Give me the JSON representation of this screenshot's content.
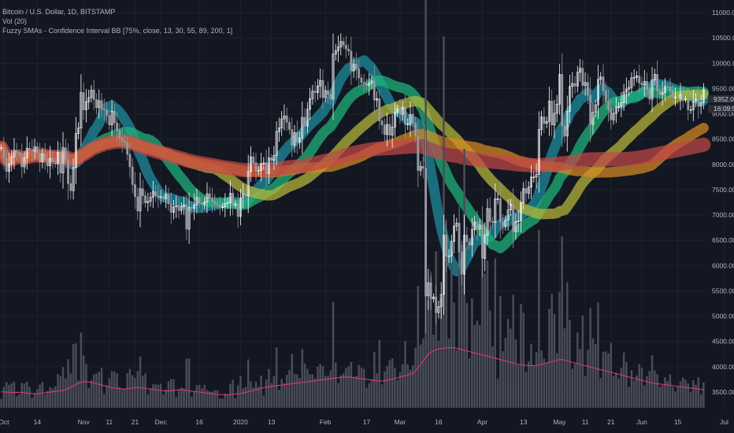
{
  "header": {
    "symbol_line": "Bitcoin / U.S. Dollar, 1D, BITSTAMP",
    "vol_line": "Vol (20)",
    "indicator_line": "Fuzzy SMAs - Confidence Interval BB [75%, close, 13, 30, 55, 89, 200, 1]"
  },
  "price_tags": {
    "last_price": "9352.07",
    "countdown": "16:09:50"
  },
  "colors": {
    "background": "#131722",
    "grid": "#1e222d",
    "axis_text": "#b2b5be",
    "up_candle": "#ffffff",
    "down_candle": "#9598a1",
    "volume": "#4a4d57",
    "volume_ma": "#d9396e",
    "band_13": "#1d8fa0",
    "band_30": "#1fb57a",
    "band_55": "#b8b83a",
    "band_89": "#d88a23",
    "band_200": "#c24848"
  },
  "chart_data": {
    "type": "candlestick",
    "title": "Bitcoin / U.S. Dollar, 1D, BITSTAMP",
    "y_axis": {
      "min": 3250,
      "max": 11250,
      "ticks": [
        "11000.00",
        "10500.00",
        "10000.00",
        "9500.00",
        "9000.00",
        "8500.00",
        "8000.00",
        "7500.00",
        "7000.00",
        "6500.00",
        "6000.00",
        "5500.00",
        "5000.00",
        "4500.00",
        "4000.00",
        "3500.00"
      ],
      "tick_values": [
        11000,
        10500,
        10000,
        9500,
        9000,
        8500,
        8000,
        7500,
        7000,
        6500,
        6000,
        5500,
        5000,
        4500,
        4000,
        3500
      ]
    },
    "x_axis": {
      "labels": [
        "Oct",
        "14",
        "Nov",
        "11",
        "21",
        "Dec",
        "16",
        "2020",
        "13",
        "Feb",
        "17",
        "Mar",
        "16",
        "Apr",
        "13",
        "May",
        "11",
        "21",
        "Jun",
        "15",
        "Jul"
      ],
      "label_day_index": [
        1,
        14,
        32,
        42,
        52,
        62,
        77,
        93,
        105,
        126,
        142,
        155,
        170,
        187,
        203,
        217,
        227,
        237,
        249,
        263,
        281
      ]
    },
    "series_close": [
      8330,
      8120,
      7860,
      8010,
      8150,
      8280,
      8230,
      8190,
      7950,
      8130,
      8320,
      8280,
      8260,
      8350,
      8220,
      8050,
      8210,
      8100,
      7970,
      8120,
      8060,
      8010,
      8240,
      7830,
      8330,
      8090,
      7620,
      7480,
      7940,
      8610,
      8720,
      9420,
      9080,
      9240,
      9320,
      9470,
      9280,
      9120,
      9260,
      9090,
      9080,
      8970,
      8780,
      9050,
      8820,
      8670,
      8520,
      8460,
      8440,
      8200,
      7950,
      7600,
      7360,
      7080,
      7520,
      7380,
      7240,
      7270,
      7350,
      7460,
      7380,
      7350,
      7360,
      7320,
      7410,
      7220,
      7050,
      7160,
      7180,
      7090,
      7170,
      7200,
      6720,
      7150,
      7130,
      7200,
      7350,
      7230,
      7210,
      7260,
      7420,
      7320,
      7270,
      7220,
      7200,
      7160,
      7160,
      7230,
      7240,
      7430,
      7190,
      7220,
      6970,
      7340,
      7420,
      7370,
      7860,
      8150,
      8030,
      7870,
      7880,
      8010,
      8030,
      7820,
      8130,
      8080,
      8180,
      8650,
      8720,
      8900,
      8960,
      8830,
      8690,
      8380,
      8630,
      8440,
      8520,
      8930,
      8760,
      9090,
      9300,
      9450,
      9420,
      9550,
      9660,
      9320,
      9460,
      9380,
      9290,
      10180,
      10250,
      10320,
      10430,
      10360,
      10280,
      10240,
      9850,
      9980,
      9890,
      9710,
      9620,
      9600,
      9560,
      9610,
      9650,
      9270,
      9300,
      8860,
      8780,
      8590,
      8790,
      8580,
      8740,
      9020,
      9100,
      8990,
      9130,
      8790,
      8800,
      8990,
      8820,
      8560,
      7880,
      7960,
      7920,
      5400,
      5660,
      5340,
      5380,
      5070,
      5190,
      5430,
      6600,
      6190,
      6190,
      6480,
      6780,
      6840,
      6270,
      5830,
      6600,
      6470,
      6410,
      6710,
      6860,
      6720,
      6800,
      6140,
      6600,
      7130,
      6870,
      6850,
      7320,
      7320,
      6860,
      6780,
      6900,
      7100,
      7210,
      6670,
      6870,
      6880,
      7240,
      7520,
      7430,
      7550,
      7750,
      7750,
      7800,
      8690,
      8940,
      8810,
      8850,
      9250,
      8780,
      9010,
      9190,
      9780,
      8760,
      8560,
      9050,
      9540,
      9600,
      9550,
      9820,
      9900,
      9560,
      9620,
      9370,
      8790,
      9030,
      9180,
      9680,
      9730,
      9460,
      9240,
      9090,
      8880,
      9010,
      9130,
      9140,
      9220,
      9430,
      9490,
      9520,
      9710,
      9720,
      9750,
      9610,
      9570,
      9640,
      9480,
      9290,
      9670,
      9780,
      9450,
      9380,
      9420,
      9540,
      9530,
      9460,
      9330,
      9330,
      9300,
      9380,
      9280,
      9290,
      9080,
      9080,
      9250,
      9290,
      9150,
      9220,
      9480
    ],
    "volume_ma": [
      2400,
      2380,
      2350,
      2320,
      2300,
      2280,
      2300,
      2320,
      2280,
      2250,
      2200,
      2150,
      2100,
      2080,
      2100,
      2150,
      2200,
      2250,
      2300,
      2350,
      2400,
      2450,
      2500,
      2550,
      2600,
      2700,
      2900,
      3100,
      3300,
      3500,
      3700,
      3800,
      3900,
      3900,
      3850,
      3800,
      3700,
      3600,
      3500,
      3400,
      3300,
      3200,
      3100,
      3000,
      2950,
      2900,
      2850,
      2800,
      2800,
      2850,
      2900,
      2950,
      3000,
      3050,
      3000,
      2950,
      2900,
      2850,
      2800,
      2750,
      2700,
      2650,
      2600,
      2550,
      2500,
      2500,
      2550,
      2600,
      2650,
      2700,
      2700,
      2650,
      2600,
      2550,
      2500,
      2450,
      2400,
      2350,
      2300,
      2250,
      2200,
      2150,
      2100,
      2050,
      2000,
      1980,
      1960,
      1950,
      1950,
      1980,
      2000,
      2050,
      2100,
      2150,
      2200,
      2300,
      2400,
      2500,
      2600,
      2700,
      2800,
      2900,
      3000,
      3100,
      3150,
      3200,
      3250,
      3300,
      3350,
      3400,
      3450,
      3500,
      3550,
      3600,
      3650,
      3700,
      3750,
      3800,
      3850,
      3900,
      3950,
      4000,
      4050,
      4100,
      4150,
      4200,
      4250,
      4300,
      4350,
      4400,
      4450,
      4500,
      4550,
      4600,
      4600,
      4600,
      4550,
      4500,
      4450,
      4400,
      4350,
      4300,
      4250,
      4200,
      4150,
      4100,
      4050,
      4000,
      4000,
      4050,
      4100,
      4200,
      4300,
      4400,
      4500,
      4600,
      4700,
      4800,
      4900,
      5000,
      5200,
      5500,
      6000,
      6500,
      7000,
      7500,
      8000,
      8300,
      8500,
      8700,
      8800,
      8850,
      8900,
      8950,
      9000,
      9000,
      8950,
      8900,
      8800,
      8700,
      8600,
      8500,
      8400,
      8300,
      8200,
      8100,
      8000,
      7900,
      7800,
      7700,
      7600,
      7500,
      7400,
      7300,
      7200,
      7100,
      7000,
      6900,
      6800,
      6700,
      6600,
      6500,
      6450,
      6400,
      6350,
      6300,
      6300,
      6300,
      6350,
      6400,
      6500,
      6600,
      6700,
      6800,
      6900,
      7000,
      7100,
      7200,
      7200,
      7100,
      7000,
      6900,
      6800,
      6700,
      6600,
      6500,
      6400,
      6300,
      6200,
      6100,
      6000,
      5900,
      5800,
      5700,
      5600,
      5500,
      5400,
      5300,
      5200,
      5100,
      5000,
      4900,
      4800,
      4700,
      4600,
      4500,
      4400,
      4300,
      4200,
      4100,
      4000,
      3900,
      3800,
      3700,
      3650,
      3600,
      3550,
      3500,
      3450,
      3400,
      3350,
      3300,
      3250,
      3200,
      3150,
      3100,
      3050,
      3000,
      2950,
      2900,
      2850,
      2800,
      2750,
      2700
    ],
    "series": [
      {
        "period": 13,
        "color": "#1d8fa0"
      },
      {
        "period": 30,
        "color": "#1fb57a"
      },
      {
        "period": 55,
        "color": "#b8b83a"
      },
      {
        "period": 89,
        "color": "#d88a23"
      },
      {
        "period": 200,
        "color": "#c24848"
      }
    ],
    "grid": true
  }
}
